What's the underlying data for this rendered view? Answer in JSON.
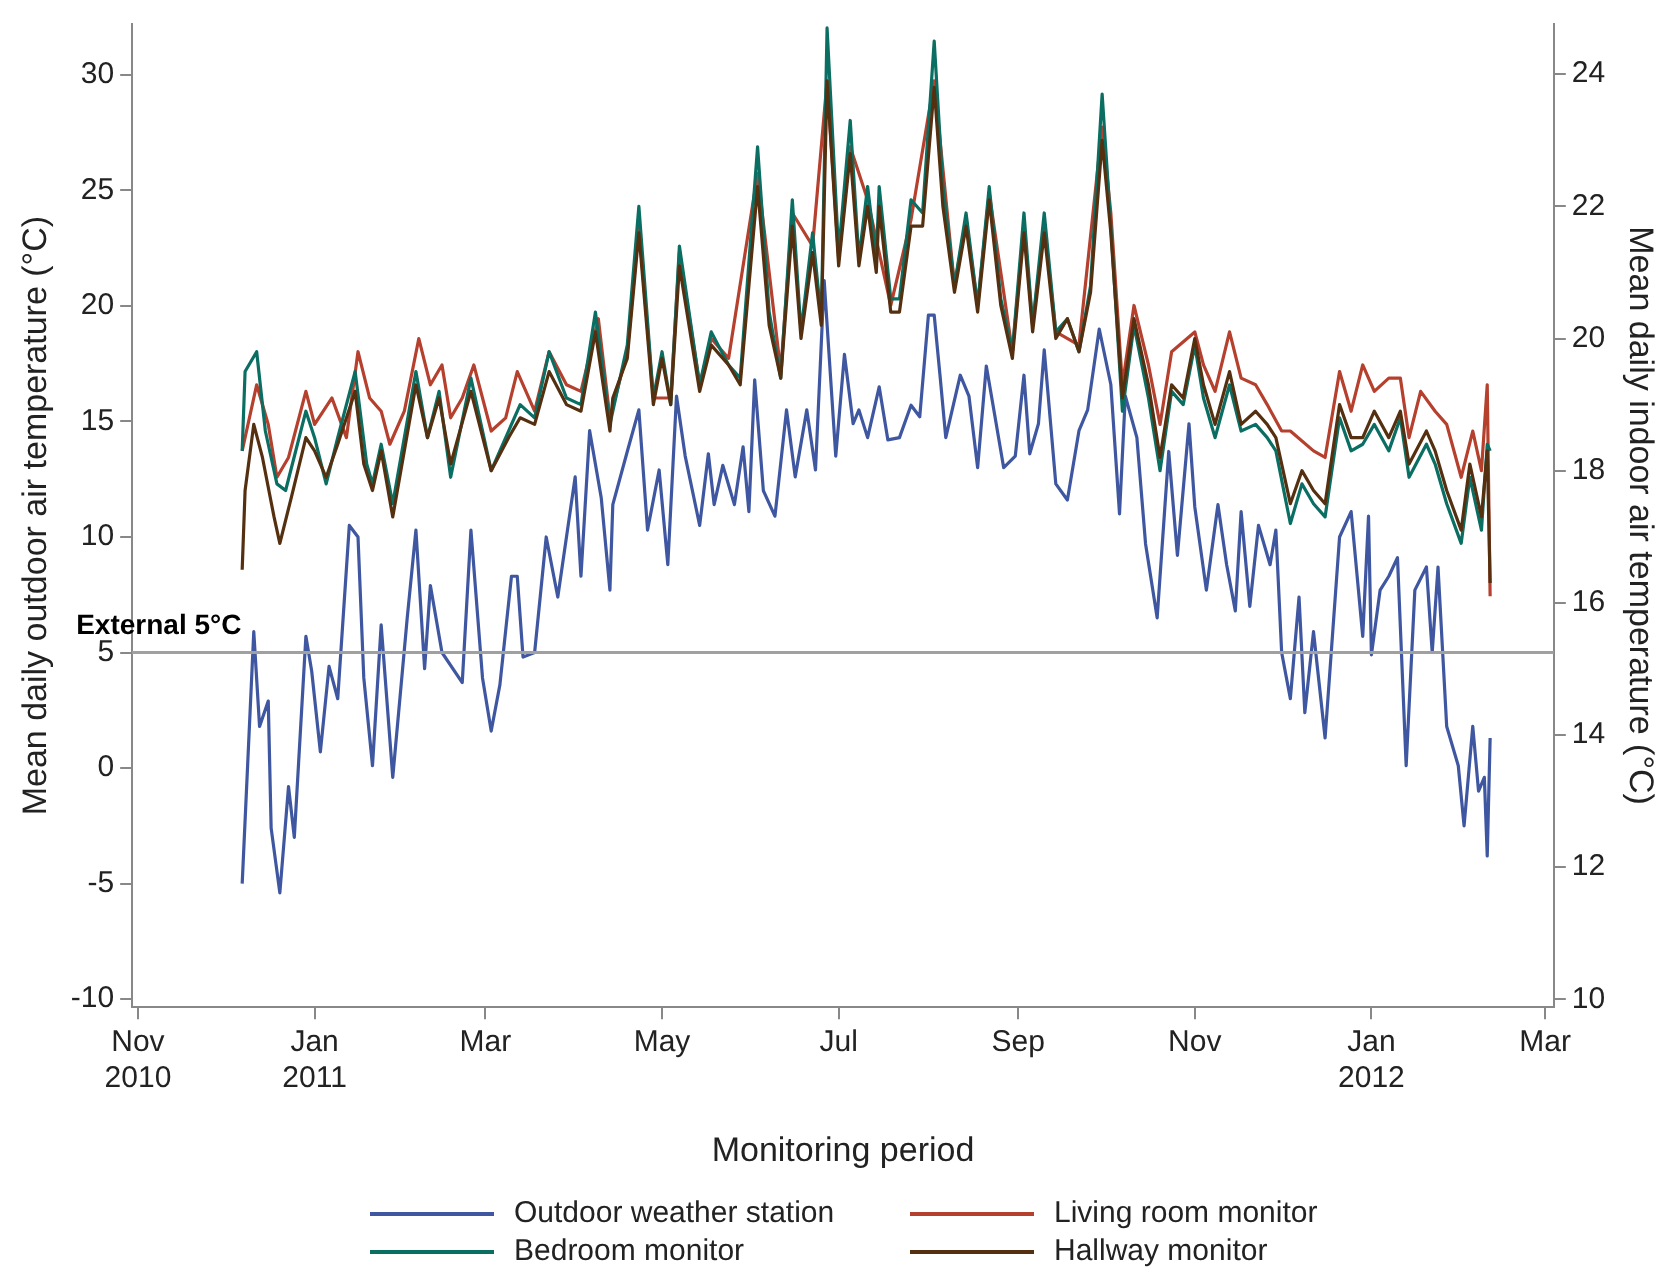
{
  "chart_data": {
    "type": "line",
    "xlabel": "Monitoring period",
    "ylabel": "Mean daily outdoor air temperature (°C)",
    "y2label": "Mean daily indoor air temperature (°C)",
    "xlim": [
      "2010-10-30",
      "2012-03-04"
    ],
    "xticks": [
      {
        "value": "2010-11-01",
        "label": "Nov 2010"
      },
      {
        "value": "2011-01-01",
        "label": "Jan 2011"
      },
      {
        "value": "2011-03-01",
        "label": "Mar"
      },
      {
        "value": "2011-05-01",
        "label": "May"
      },
      {
        "value": "2011-07-01",
        "label": "Jul"
      },
      {
        "value": "2011-09-01",
        "label": "Sep"
      },
      {
        "value": "2011-11-01",
        "label": "Nov"
      },
      {
        "value": "2012-01-01",
        "label": "Jan 2012"
      },
      {
        "value": "2012-03-01",
        "label": "Mar"
      }
    ],
    "ylim": [
      -10.35,
      32.2
    ],
    "yticks": [
      -10,
      -5,
      0,
      5,
      10,
      15,
      20,
      25,
      30
    ],
    "y2lim": [
      9.88,
      24.76
    ],
    "y2ticks": [
      10,
      12,
      14,
      16,
      18,
      20,
      22,
      24
    ],
    "grid": false,
    "legend": "bottom",
    "marker": "none",
    "line_style": "solid",
    "ref_lines": [
      {
        "axis": "y",
        "value": 5,
        "label": "External 5°C",
        "color": "#a0a0a0"
      }
    ],
    "series": [
      {
        "name": "Outdoor weather station",
        "color": "#3f57a0",
        "x": [
          "2010-12-07",
          "2010-12-11",
          "2010-12-13",
          "2010-12-16",
          "2010-12-17",
          "2010-12-20",
          "2010-12-23",
          "2010-12-25",
          "2010-12-29",
          "2010-12-31",
          "2011-01-03",
          "2011-01-06",
          "2011-01-09",
          "2011-01-13",
          "2011-01-16",
          "2011-01-18",
          "2011-01-21",
          "2011-01-24",
          "2011-01-28",
          "2011-02-02",
          "2011-02-05",
          "2011-02-08",
          "2011-02-10",
          "2011-02-14",
          "2011-02-21",
          "2011-02-24",
          "2011-02-28",
          "2011-03-03",
          "2011-03-06",
          "2011-03-10",
          "2011-03-12",
          "2011-03-14",
          "2011-03-18",
          "2011-03-22",
          "2011-03-26",
          "2011-04-01",
          "2011-04-03",
          "2011-04-06",
          "2011-04-10",
          "2011-04-13",
          "2011-04-14",
          "2011-04-19",
          "2011-04-23",
          "2011-04-26",
          "2011-04-30",
          "2011-05-03",
          "2011-05-06",
          "2011-05-09",
          "2011-05-14",
          "2011-05-17",
          "2011-05-19",
          "2011-05-22",
          "2011-05-26",
          "2011-05-29",
          "2011-05-31",
          "2011-06-02",
          "2011-06-05",
          "2011-06-09",
          "2011-06-13",
          "2011-06-16",
          "2011-06-20",
          "2011-06-23",
          "2011-06-26",
          "2011-06-30",
          "2011-07-03",
          "2011-07-06",
          "2011-07-08",
          "2011-07-11",
          "2011-07-15",
          "2011-07-18",
          "2011-07-22",
          "2011-07-26",
          "2011-07-29",
          "2011-08-01",
          "2011-08-03",
          "2011-08-05",
          "2011-08-07",
          "2011-08-12",
          "2011-08-15",
          "2011-08-18",
          "2011-08-21",
          "2011-08-24",
          "2011-08-27",
          "2011-08-31",
          "2011-09-03",
          "2011-09-05",
          "2011-09-08",
          "2011-09-10",
          "2011-09-14",
          "2011-09-18",
          "2011-09-22",
          "2011-09-25",
          "2011-09-29",
          "2011-10-03",
          "2011-10-06",
          "2011-10-08",
          "2011-10-12",
          "2011-10-15",
          "2011-10-19",
          "2011-10-23",
          "2011-10-26",
          "2011-10-30",
          "2011-11-01",
          "2011-11-05",
          "2011-11-09",
          "2011-11-12",
          "2011-11-15",
          "2011-11-17",
          "2011-11-20",
          "2011-11-23",
          "2011-11-27",
          "2011-11-29",
          "2011-12-01",
          "2011-12-04",
          "2011-12-07",
          "2011-12-09",
          "2011-12-12",
          "2011-12-16",
          "2011-12-21",
          "2011-12-25",
          "2011-12-29",
          "2011-12-31",
          "2012-01-01",
          "2012-01-04",
          "2012-01-07",
          "2012-01-10",
          "2012-01-13",
          "2012-01-16",
          "2012-01-20",
          "2012-01-22",
          "2012-01-24",
          "2012-01-27",
          "2012-01-31",
          "2012-02-02",
          "2012-02-05",
          "2012-02-07",
          "2012-02-09",
          "2012-02-10",
          "2012-02-11"
        ],
        "values": [
          -5,
          5.9,
          1.8,
          2.9,
          -2.6,
          -5.4,
          -0.8,
          -3,
          5.7,
          4.2,
          0.7,
          4.4,
          3,
          10.5,
          10,
          3.9,
          0.1,
          6.2,
          -0.4,
          6.5,
          10.3,
          4.3,
          7.9,
          5,
          3.7,
          10.3,
          3.9,
          1.6,
          3.6,
          8.3,
          8.3,
          4.8,
          5,
          10,
          7.4,
          12.6,
          8.3,
          14.6,
          11.7,
          7.7,
          11.4,
          13.7,
          15.5,
          10.3,
          12.9,
          8.8,
          16.1,
          13.5,
          10.5,
          13.6,
          11.4,
          13.1,
          11.4,
          13.9,
          11.1,
          16.8,
          12,
          10.9,
          15.5,
          12.6,
          15.5,
          12.9,
          21.1,
          13.5,
          17.9,
          14.9,
          15.5,
          14.3,
          16.5,
          14.2,
          14.3,
          15.7,
          15.2,
          19.6,
          19.6,
          17,
          14.3,
          17,
          16.1,
          13,
          17.4,
          15.2,
          13,
          13.5,
          17,
          13.6,
          14.9,
          18.1,
          12.3,
          11.6,
          14.6,
          15.5,
          19,
          16.6,
          11,
          16.1,
          14.3,
          9.7,
          6.5,
          13.7,
          9.2,
          14.9,
          11.3,
          7.7,
          11.4,
          8.8,
          6.8,
          11.1,
          7,
          10.5,
          8.8,
          10.3,
          5,
          3,
          7.4,
          2.4,
          5.9,
          1.3,
          10,
          11.1,
          5.7,
          10.9,
          4.9,
          7.7,
          8.3,
          9.1,
          0.1,
          7.7,
          8.7,
          5,
          8.7,
          1.8,
          0.1,
          -2.5,
          1.8,
          -1,
          -0.4,
          -3.8,
          1.3
        ]
      },
      {
        "name": "Living room monitor",
        "color": "#b5402e",
        "axis": "y2",
        "x": [
          "2010-12-07",
          "2010-12-12",
          "2010-12-16",
          "2010-12-19",
          "2010-12-23",
          "2010-12-29",
          "2011-01-01",
          "2011-01-07",
          "2011-01-12",
          "2011-01-16",
          "2011-01-20",
          "2011-01-24",
          "2011-01-27",
          "2011-02-01",
          "2011-02-06",
          "2011-02-10",
          "2011-02-14",
          "2011-02-17",
          "2011-02-21",
          "2011-02-25",
          "2011-03-03",
          "2011-03-08",
          "2011-03-12",
          "2011-03-18",
          "2011-03-23",
          "2011-03-29",
          "2011-04-03",
          "2011-04-09",
          "2011-04-13",
          "2011-04-19",
          "2011-04-23",
          "2011-04-28",
          "2011-05-04",
          "2011-05-07",
          "2011-05-14",
          "2011-05-18",
          "2011-05-24",
          "2011-06-03",
          "2011-06-11",
          "2011-06-15",
          "2011-06-22",
          "2011-06-27",
          "2011-07-01",
          "2011-07-05",
          "2011-07-11",
          "2011-07-19",
          "2011-07-26",
          "2011-08-03",
          "2011-08-10",
          "2011-08-14",
          "2011-08-18",
          "2011-08-22",
          "2011-08-30",
          "2011-09-03",
          "2011-09-06",
          "2011-09-10",
          "2011-09-14",
          "2011-09-22",
          "2011-09-30",
          "2011-10-03",
          "2011-10-07",
          "2011-10-11",
          "2011-10-16",
          "2011-10-20",
          "2011-10-24",
          "2011-11-01",
          "2011-11-04",
          "2011-11-08",
          "2011-11-13",
          "2011-11-17",
          "2011-11-22",
          "2011-11-26",
          "2011-12-01",
          "2011-12-04",
          "2011-12-12",
          "2011-12-16",
          "2011-12-21",
          "2011-12-25",
          "2011-12-29",
          "2012-01-02",
          "2012-01-07",
          "2012-01-11",
          "2012-01-14",
          "2012-01-18",
          "2012-01-23",
          "2012-01-27",
          "2012-02-01",
          "2012-02-05",
          "2012-02-08",
          "2012-02-10",
          "2012-02-11"
        ],
        "values": [
          18.3,
          19.3,
          18.7,
          17.9,
          18.2,
          19.2,
          18.7,
          19.1,
          18.5,
          19.8,
          19.1,
          18.9,
          18.4,
          18.9,
          20,
          19.3,
          19.6,
          18.8,
          19.1,
          19.6,
          18.6,
          18.8,
          19.5,
          18.9,
          19.8,
          19.3,
          19.2,
          20.3,
          18.8,
          19.8,
          21.7,
          19.1,
          19.1,
          21.3,
          19.3,
          20,
          19.7,
          22.5,
          19.5,
          21.9,
          21.4,
          23.9,
          21.2,
          22.9,
          22.1,
          20.5,
          21.8,
          23.9,
          20.8,
          21.8,
          20.5,
          22.2,
          19.8,
          21.7,
          20.2,
          21.7,
          20.1,
          19.9,
          23.2,
          21.9,
          19.3,
          20.5,
          19.6,
          18.7,
          19.8,
          20.1,
          19.6,
          19.2,
          20.1,
          19.4,
          19.3,
          19,
          18.6,
          18.6,
          18.3,
          18.2,
          19.5,
          18.9,
          19.6,
          19.2,
          19.4,
          19.4,
          18.5,
          19.2,
          18.9,
          18.7,
          17.9,
          18.6,
          18,
          19.3,
          16.1
        ]
      },
      {
        "name": "Bedroom monitor",
        "color": "#0b6e62",
        "axis": "y2",
        "x": [
          "2010-12-07",
          "2010-12-08",
          "2010-12-12",
          "2010-12-15",
          "2010-12-19",
          "2010-12-22",
          "2010-12-29",
          "2011-01-01",
          "2011-01-05",
          "2011-01-09",
          "2011-01-15",
          "2011-01-19",
          "2011-01-21",
          "2011-01-24",
          "2011-01-28",
          "2011-02-05",
          "2011-02-09",
          "2011-02-13",
          "2011-02-17",
          "2011-02-24",
          "2011-03-03",
          "2011-03-09",
          "2011-03-13",
          "2011-03-18",
          "2011-03-23",
          "2011-03-29",
          "2011-04-03",
          "2011-04-08",
          "2011-04-13",
          "2011-04-19",
          "2011-04-23",
          "2011-04-28",
          "2011-05-01",
          "2011-05-04",
          "2011-05-07",
          "2011-05-14",
          "2011-05-18",
          "2011-05-24",
          "2011-05-28",
          "2011-06-03",
          "2011-06-07",
          "2011-06-11",
          "2011-06-15",
          "2011-06-18",
          "2011-06-22",
          "2011-06-25",
          "2011-06-27",
          "2011-07-01",
          "2011-07-05",
          "2011-07-08",
          "2011-07-11",
          "2011-07-14",
          "2011-07-15",
          "2011-07-19",
          "2011-07-22",
          "2011-07-26",
          "2011-07-30",
          "2011-08-03",
          "2011-08-06",
          "2011-08-10",
          "2011-08-14",
          "2011-08-18",
          "2011-08-22",
          "2011-08-26",
          "2011-08-30",
          "2011-09-03",
          "2011-09-06",
          "2011-09-10",
          "2011-09-14",
          "2011-09-18",
          "2011-09-22",
          "2011-09-26",
          "2011-09-30",
          "2011-10-03",
          "2011-10-07",
          "2011-10-11",
          "2011-10-16",
          "2011-10-20",
          "2011-10-24",
          "2011-10-28",
          "2011-11-01",
          "2011-11-04",
          "2011-11-08",
          "2011-11-13",
          "2011-11-17",
          "2011-11-22",
          "2011-11-26",
          "2011-11-29",
          "2011-12-04",
          "2011-12-08",
          "2011-12-12",
          "2011-12-16",
          "2011-12-21",
          "2011-12-25",
          "2011-12-29",
          "2012-01-02",
          "2012-01-07",
          "2012-01-11",
          "2012-01-14",
          "2012-01-20",
          "2012-01-23",
          "2012-01-27",
          "2012-02-01",
          "2012-02-04",
          "2012-02-08",
          "2012-02-10",
          "2012-02-11"
        ],
        "values": [
          18.3,
          19.5,
          19.8,
          18.6,
          17.8,
          17.7,
          18.9,
          18.5,
          17.8,
          18.5,
          19.5,
          18.1,
          17.8,
          18.4,
          17.5,
          19.5,
          18.5,
          19.2,
          17.9,
          19.4,
          18,
          18.6,
          19,
          18.8,
          19.8,
          19.1,
          19,
          20.4,
          18.7,
          19.9,
          22,
          19.1,
          19.8,
          19,
          21.4,
          19.3,
          20.1,
          19.6,
          19.4,
          22.9,
          20.4,
          19.4,
          22.1,
          20.1,
          21.6,
          20.3,
          24.7,
          21.3,
          23.3,
          21.2,
          22.3,
          21.2,
          22.3,
          20.6,
          20.6,
          22.1,
          21.9,
          24.5,
          22.3,
          20.8,
          21.9,
          20.5,
          22.3,
          20.6,
          19.8,
          21.9,
          20.2,
          21.9,
          20.1,
          20.3,
          19.8,
          20.8,
          23.7,
          21.7,
          18.9,
          20.2,
          19.1,
          18,
          19.2,
          19,
          19.9,
          19.1,
          18.5,
          19.3,
          18.6,
          18.7,
          18.5,
          18.3,
          17.2,
          17.8,
          17.5,
          17.3,
          18.8,
          18.3,
          18.4,
          18.7,
          18.3,
          18.8,
          17.9,
          18.4,
          18.1,
          17.5,
          16.9,
          17.9,
          17.1,
          18.4,
          18.3
        ]
      },
      {
        "name": "Hallway monitor",
        "color": "#553010",
        "axis": "y2",
        "x": [
          "2010-12-07",
          "2010-12-08",
          "2010-12-11",
          "2010-12-14",
          "2010-12-18",
          "2010-12-20",
          "2010-12-24",
          "2010-12-29",
          "2011-01-01",
          "2011-01-05",
          "2011-01-09",
          "2011-01-15",
          "2011-01-18",
          "2011-01-21",
          "2011-01-24",
          "2011-01-28",
          "2011-02-05",
          "2011-02-09",
          "2011-02-13",
          "2011-02-17",
          "2011-02-24",
          "2011-03-03",
          "2011-03-09",
          "2011-03-13",
          "2011-03-18",
          "2011-03-23",
          "2011-03-29",
          "2011-04-03",
          "2011-04-08",
          "2011-04-13",
          "2011-04-14",
          "2011-04-19",
          "2011-04-23",
          "2011-04-28",
          "2011-05-01",
          "2011-05-04",
          "2011-05-07",
          "2011-05-14",
          "2011-05-18",
          "2011-05-24",
          "2011-05-28",
          "2011-06-03",
          "2011-06-07",
          "2011-06-11",
          "2011-06-15",
          "2011-06-18",
          "2011-06-22",
          "2011-06-25",
          "2011-06-27",
          "2011-07-01",
          "2011-07-05",
          "2011-07-08",
          "2011-07-11",
          "2011-07-14",
          "2011-07-15",
          "2011-07-19",
          "2011-07-22",
          "2011-07-26",
          "2011-07-30",
          "2011-08-03",
          "2011-08-06",
          "2011-08-10",
          "2011-08-14",
          "2011-08-18",
          "2011-08-22",
          "2011-08-26",
          "2011-08-30",
          "2011-09-03",
          "2011-09-06",
          "2011-09-10",
          "2011-09-14",
          "2011-09-18",
          "2011-09-22",
          "2011-09-26",
          "2011-09-30",
          "2011-10-03",
          "2011-10-07",
          "2011-10-11",
          "2011-10-16",
          "2011-10-20",
          "2011-10-24",
          "2011-10-28",
          "2011-11-01",
          "2011-11-04",
          "2011-11-08",
          "2011-11-13",
          "2011-11-17",
          "2011-11-22",
          "2011-11-26",
          "2011-11-29",
          "2011-12-04",
          "2011-12-08",
          "2011-12-12",
          "2011-12-16",
          "2011-12-21",
          "2011-12-25",
          "2011-12-29",
          "2012-01-02",
          "2012-01-07",
          "2012-01-11",
          "2012-01-14",
          "2012-01-20",
          "2012-01-23",
          "2012-01-27",
          "2012-02-01",
          "2012-02-04",
          "2012-02-08",
          "2012-02-10",
          "2012-02-11"
        ],
        "values": [
          16.5,
          17.7,
          18.7,
          18.2,
          17.3,
          16.9,
          17.6,
          18.5,
          18.3,
          17.9,
          18.4,
          19.2,
          18.1,
          17.7,
          18.3,
          17.3,
          19.3,
          18.5,
          19.1,
          18.1,
          19.2,
          18,
          18.5,
          18.8,
          18.7,
          19.5,
          19,
          18.9,
          20.1,
          18.6,
          19.1,
          19.7,
          21.6,
          19,
          19.7,
          19,
          21.1,
          19.2,
          19.9,
          19.6,
          19.3,
          22.3,
          20.2,
          19.4,
          21.7,
          20,
          21.3,
          20.2,
          23.9,
          21.1,
          22.8,
          21.1,
          22,
          21,
          22,
          20.4,
          20.4,
          21.7,
          21.7,
          23.8,
          22,
          20.7,
          21.7,
          20.4,
          22.1,
          20.5,
          19.7,
          21.6,
          20.1,
          21.6,
          20,
          20.3,
          19.8,
          20.7,
          23,
          21.6,
          19.1,
          20.3,
          19.3,
          18.2,
          19.3,
          19.1,
          20,
          19.3,
          18.7,
          19.5,
          18.7,
          18.9,
          18.7,
          18.5,
          17.5,
          18,
          17.7,
          17.5,
          19,
          18.5,
          18.5,
          18.9,
          18.5,
          18.9,
          18.1,
          18.6,
          18.3,
          17.7,
          17.1,
          18.1,
          17.3,
          18.3,
          16.3
        ]
      }
    ]
  }
}
